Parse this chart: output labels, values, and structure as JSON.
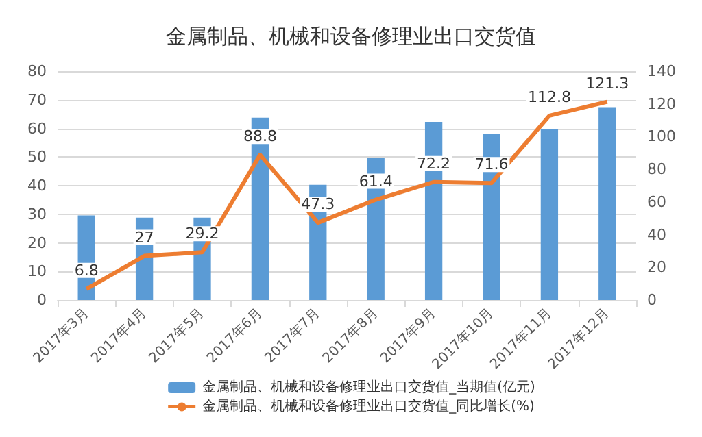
{
  "chart_data": {
    "type": "bar",
    "title": "金属制品、机械和设备修理业出口交货值",
    "categories": [
      "2017年3月",
      "2017年4月",
      "2017年5月",
      "2017年6月",
      "2017年7月",
      "2017年8月",
      "2017年9月",
      "2017年10月",
      "2017年11月",
      "2017年12月"
    ],
    "series": [
      {
        "name": "金属制品、机械和设备修理业出口交货值_当期值(亿元)",
        "color": "#5b9bd5",
        "values": [
          29.6,
          28.8,
          28.8,
          63.8,
          40.3,
          49.7,
          62.3,
          58.2,
          59.9,
          67.4
        ]
      },
      {
        "name": "金属制品、机械和设备修理业出口交货值_同比增长(%)",
        "type": "line",
        "axis": "y2",
        "color": "#ed7d31",
        "data_labels": true,
        "values": [
          6.8,
          27,
          29.2,
          88.8,
          47.3,
          61.4,
          72.2,
          71.6,
          112.8,
          121.3
        ]
      }
    ],
    "ylim": [
      0,
      80
    ],
    "yticks": [
      0,
      10,
      20,
      30,
      40,
      50,
      60,
      70,
      80
    ],
    "y2lim": [
      0,
      140
    ],
    "y2ticks": [
      0,
      20,
      40,
      60,
      80,
      100,
      120,
      140
    ],
    "grid": "y",
    "legend": "bottom",
    "marker": "none"
  }
}
